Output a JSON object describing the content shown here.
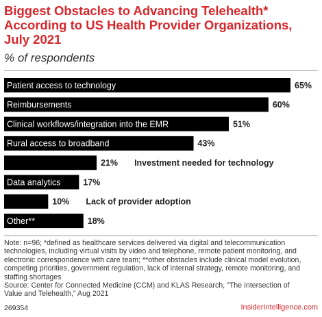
{
  "title": "Biggest Obstacles to Advancing Telehealth*\nAccording to US Health Provider Organizations,\nJuly 2021",
  "subtitle": "% of respondents",
  "chart_data": {
    "type": "bar",
    "orientation": "horizontal",
    "title": "Biggest Obstacles to Advancing Telehealth* According to US Health Provider Organizations, July 2021",
    "subtitle": "% of respondents",
    "categories": [
      "Patient access to technology",
      "Reimbursements",
      "Clinical workflows/integration into the EMR",
      "Rural access to broadband",
      "Investment needed for technology",
      "Data analytics",
      "Lack of provider adoption",
      "Other**"
    ],
    "values": [
      65,
      60,
      51,
      43,
      21,
      17,
      10,
      18
    ],
    "value_labels": [
      "65%",
      "60%",
      "51%",
      "43%",
      "21%",
      "17%",
      "10%",
      "18%"
    ],
    "xlim": [
      0,
      65
    ],
    "grid": false,
    "legend": "none",
    "bar_color": "#000000",
    "label_color_inside": "#ffffff",
    "label_color_outside": "#222222"
  },
  "note": "Note: n=96; *defined as healthcare services delivered via digital and telecommunication\ntechnologies, including virtual visits by video and telephone, remote patient monitoring, and\nelectronic correspondence with care team; **other obstacles include clinical model evolution,\ncompeting priorities, government regulation, lack of internal strategy, remote monitoring, and\nstaffing shortages\nSource: Center for Connected Medicine (CCM) and KLAS Research, \"The Intersection of\nValue and Telehealth,\" Aug 2021",
  "footer_id": "269354",
  "brand": "InsiderIntelligence.com"
}
